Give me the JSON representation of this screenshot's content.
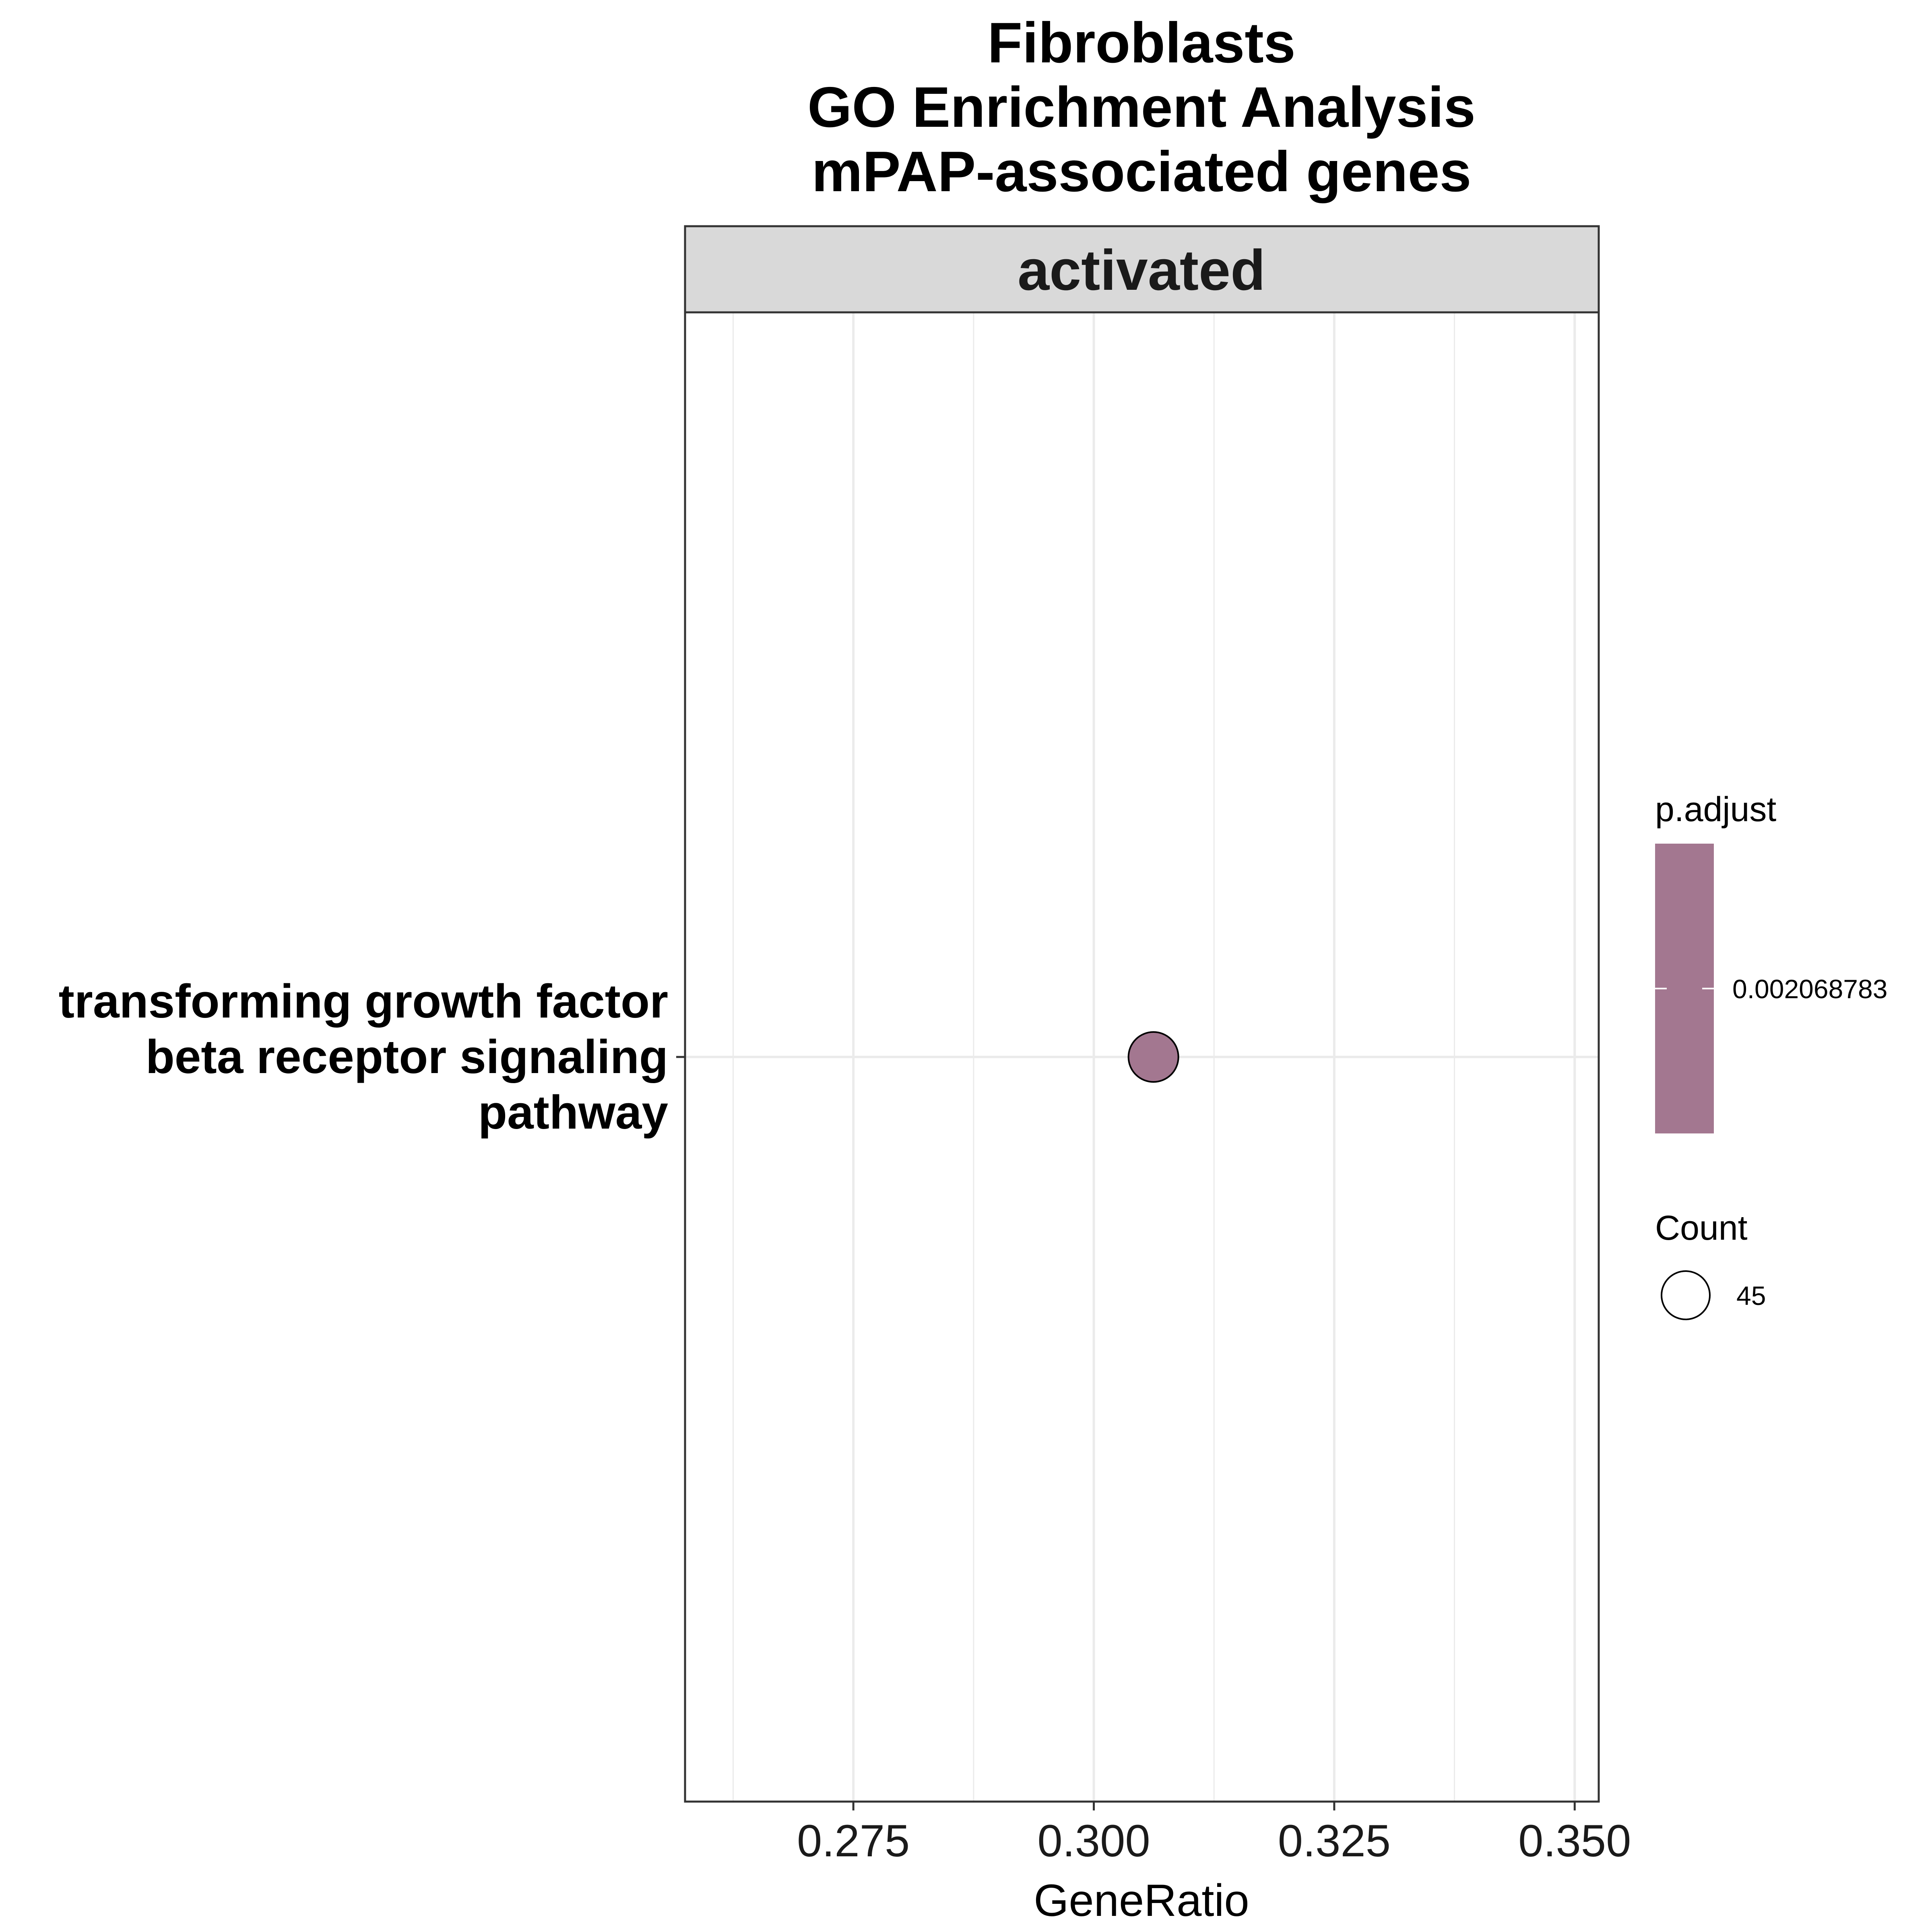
{
  "chart_data": {
    "type": "scatter",
    "title_lines": [
      "Fibroblasts",
      "GO Enrichment Analysis",
      "mPAP-associated genes"
    ],
    "facet": "activated",
    "xlabel": "GeneRatio",
    "ylabel": "",
    "xlim": [
      0.2575,
      0.3525
    ],
    "xticks": [
      0.275,
      0.3,
      0.325,
      0.35
    ],
    "xtick_labels": [
      "0.275",
      "0.300",
      "0.325",
      "0.350"
    ],
    "grid": true,
    "categories": [
      [
        "transforming growth factor",
        "beta receptor signaling",
        "pathway"
      ]
    ],
    "points": [
      {
        "category_index": 0,
        "x": 0.3062,
        "count": 45,
        "p_adjust": 0.002068783
      }
    ],
    "legend": {
      "placement": "right",
      "color": {
        "title": "p.adjust",
        "label": "0.002068783",
        "fill": "#a37790"
      },
      "size": {
        "title": "Count",
        "label": "45"
      }
    },
    "colors": {
      "point_fill": "#a37790",
      "strip_fill": "#d9d9d9",
      "grid": "#ebebeb",
      "panel_border": "#333333"
    }
  }
}
